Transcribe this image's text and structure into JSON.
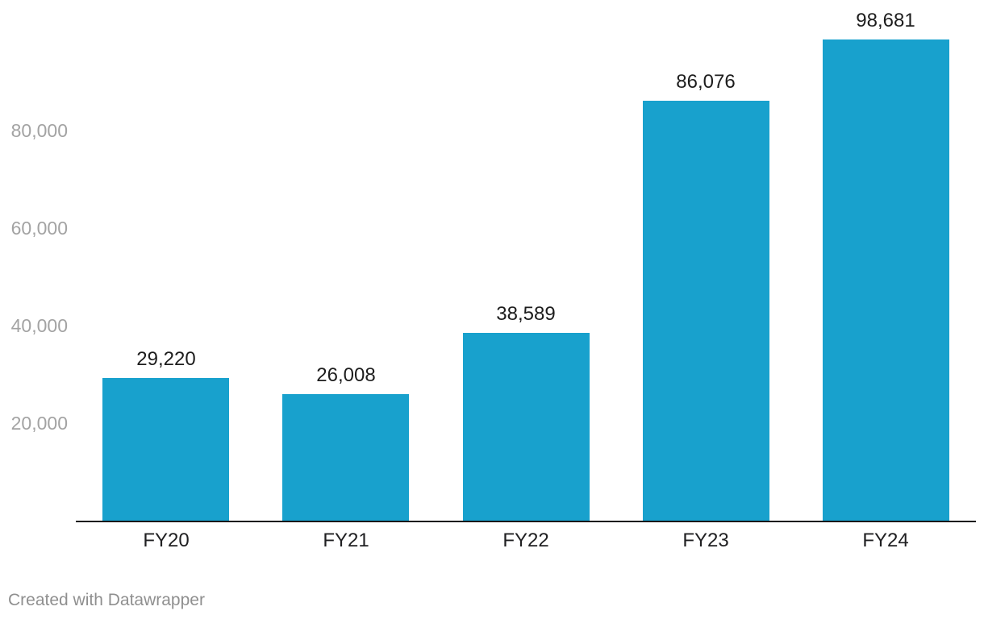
{
  "attribution": {
    "label": "Created with Datawrapper"
  },
  "colors": {
    "background": "#ffffff",
    "bar": "#18a1cd",
    "axis_line": "#18181a",
    "tick_label": "#a3a3a3",
    "value_label": "#1d1d1d",
    "category_label": "#202022",
    "attribution": "#8f8f8f"
  },
  "chart_data": {
    "type": "bar",
    "title": "",
    "xlabel": "",
    "ylabel": "",
    "categories": [
      "FY20",
      "FY21",
      "FY22",
      "FY23",
      "FY24"
    ],
    "values": [
      29220,
      26008,
      38589,
      86076,
      98681
    ],
    "value_labels": [
      "29,220",
      "26,008",
      "38,589",
      "86,076",
      "98,681"
    ],
    "yticks": [
      20000,
      40000,
      60000,
      80000
    ],
    "ytick_labels": [
      "20,000",
      "40,000",
      "60,000",
      "80,000"
    ],
    "ylim": [
      0,
      107000
    ],
    "grid": false,
    "legend_position": "none",
    "value_labels_shown": true
  }
}
